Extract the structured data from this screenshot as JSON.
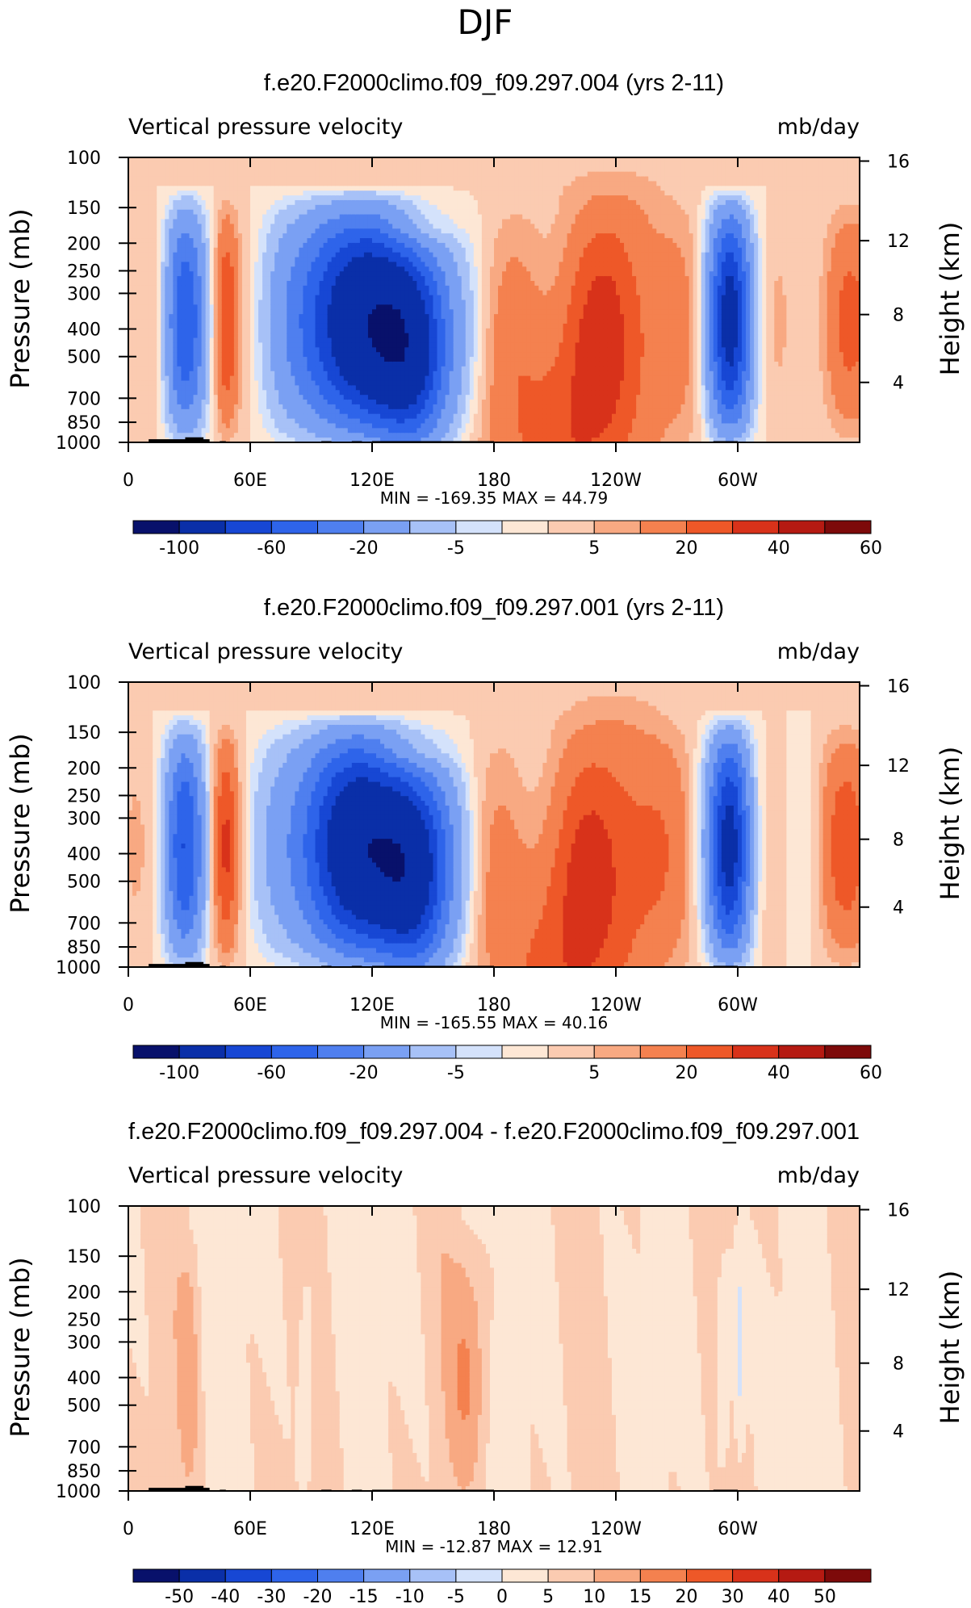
{
  "figure_title": "DJF",
  "panels": [
    {
      "title": "f.e20.F2000climo.f09_f09.297.004 (yrs 2-11)",
      "variable_label": "Vertical pressure velocity",
      "units_label": "mb/day",
      "ylabel": "Pressure (mb)",
      "y2label": "Height (km)",
      "stats": "MIN = -169.35   MAX =   44.79"
    },
    {
      "title": "f.e20.F2000climo.f09_f09.297.001 (yrs 2-11)",
      "variable_label": "Vertical pressure velocity",
      "units_label": "mb/day",
      "ylabel": "Pressure (mb)",
      "y2label": "Height (km)",
      "stats": "MIN = -165.55   MAX =   40.16"
    },
    {
      "title": "f.e20.F2000climo.f09_f09.297.004 - f.e20.F2000climo.f09_f09.297.001",
      "variable_label": "Vertical pressure velocity",
      "units_label": "mb/day",
      "ylabel": "Pressure (mb)",
      "y2label": "Height (km)",
      "stats": "MIN = -12.87   MAX =   12.91"
    }
  ],
  "chart_data": [
    {
      "type": "heatmap",
      "title": "f.e20.F2000climo.f09_f09.297.004 (yrs 2-11)",
      "x_ticks": [
        "0",
        "60E",
        "120E",
        "180",
        "120W",
        "60W"
      ],
      "y_ticks": [
        "100",
        "150",
        "200",
        "250",
        "300",
        "400",
        "500",
        "700",
        "850",
        "1000"
      ],
      "y2_ticks": [
        "16",
        "12",
        "8",
        "4"
      ],
      "ylim": [
        1000,
        100
      ],
      "y_scale": "log",
      "colorbar_labels": [
        "-100",
        "-60",
        "-20",
        "-5",
        "5",
        "20",
        "40",
        "60"
      ],
      "min": -169.35,
      "max": 44.79
    },
    {
      "type": "heatmap",
      "title": "f.e20.F2000climo.f09_f09.297.001 (yrs 2-11)",
      "x_ticks": [
        "0",
        "60E",
        "120E",
        "180",
        "120W",
        "60W"
      ],
      "y_ticks": [
        "100",
        "150",
        "200",
        "250",
        "300",
        "400",
        "500",
        "700",
        "850",
        "1000"
      ],
      "y2_ticks": [
        "16",
        "12",
        "8",
        "4"
      ],
      "ylim": [
        1000,
        100
      ],
      "y_scale": "log",
      "colorbar_labels": [
        "-100",
        "-60",
        "-20",
        "-5",
        "5",
        "20",
        "40",
        "60"
      ],
      "min": -165.55,
      "max": 40.16
    },
    {
      "type": "heatmap",
      "title": "f.e20.F2000climo.f09_f09.297.004 - f.e20.F2000climo.f09_f09.297.001",
      "x_ticks": [
        "0",
        "60E",
        "120E",
        "180",
        "120W",
        "60W"
      ],
      "y_ticks": [
        "100",
        "150",
        "200",
        "250",
        "300",
        "400",
        "500",
        "700",
        "850",
        "1000"
      ],
      "y2_ticks": [
        "16",
        "12",
        "8",
        "4"
      ],
      "ylim": [
        1000,
        100
      ],
      "y_scale": "log",
      "colorbar_labels": [
        "-50",
        "-40",
        "-30",
        "-20",
        "-15",
        "-10",
        "-5",
        "0",
        "5",
        "10",
        "15",
        "20",
        "30",
        "40",
        "50"
      ],
      "min": -12.87,
      "max": 12.91
    }
  ],
  "colors": {
    "colormap": [
      "#08116b",
      "#0a2fa8",
      "#1747d4",
      "#2e64ea",
      "#4f7fef",
      "#7aa0f3",
      "#a7c1f7",
      "#d4e2fb",
      "#fde7d5",
      "#fbcbb1",
      "#f8a982",
      "#f4814f",
      "#ee5828",
      "#d8321a",
      "#b51a12",
      "#7d0a0a"
    ],
    "topography": "#000000"
  }
}
